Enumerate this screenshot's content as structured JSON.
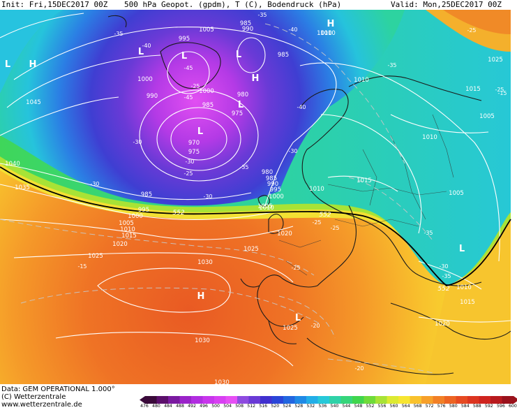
{
  "header": {
    "init": "Init: Fri,15DEC2017 00Z",
    "title": "500 hPa Geopot. (gpdm), T (C), Bodendruck (hPa)",
    "valid": "Valid: Mon,25DEC2017 00Z"
  },
  "footer": {
    "data_source": "Data: GEM OPERATIONAL 1.000°",
    "copyright": "(C) Wetterzentrale",
    "website": "www.wetterzentrale.de"
  },
  "colorbar": {
    "ticks": [
      "476",
      "480",
      "484",
      "488",
      "492",
      "496",
      "500",
      "504",
      "508",
      "512",
      "516",
      "520",
      "524",
      "528",
      "532",
      "536",
      "540",
      "544",
      "548",
      "552",
      "556",
      "560",
      "564",
      "568",
      "572",
      "576",
      "580",
      "584",
      "588",
      "592",
      "596",
      "600"
    ],
    "colors": [
      "#3a0a3a",
      "#5b0f6b",
      "#7a1aa0",
      "#9a23c9",
      "#b12de0",
      "#c836ec",
      "#d840f2",
      "#e64ff4",
      "#8e4be0",
      "#6a3ad6",
      "#4030cf",
      "#2a45d8",
      "#2266e0",
      "#1f8ae6",
      "#23aee8",
      "#27c9d9",
      "#2fd2a8",
      "#36d57a",
      "#40d64d",
      "#6fdb3a",
      "#a8e336",
      "#dcea32",
      "#f7e531",
      "#f9c22d",
      "#f7a02a",
      "#f28026",
      "#ed6423",
      "#e64a22",
      "#dc3520",
      "#cf241f",
      "#b81a1e",
      "#9a121c"
    ]
  },
  "map": {
    "pressure_labels": [
      "1005",
      "985",
      "990",
      "995",
      "1010",
      "985",
      "1000",
      "990",
      "1000",
      "985",
      "980",
      "975",
      "970",
      "975",
      "985",
      "980",
      "985",
      "990",
      "995",
      "1000",
      "1005",
      "995",
      "1000",
      "1005",
      "1010",
      "1015",
      "1020",
      "1025",
      "1030",
      "1035",
      "1040",
      "1045",
      "1010",
      "1010",
      "1015",
      "1020",
      "1025",
      "1010",
      "1005",
      "1010",
      "1015",
      "1020",
      "1025",
      "1030",
      "1010",
      "1015",
      "1005",
      "1010",
      "1025",
      "1030"
    ],
    "temp_labels": [
      "-35",
      "-40",
      "-35",
      "-40",
      "-45",
      "-40",
      "-45",
      "-35",
      "-35",
      "-30",
      "-30",
      "-30",
      "-25",
      "-25",
      "-25",
      "-30",
      "-25",
      "-20",
      "-15",
      "-20",
      "-25",
      "-25",
      "-30",
      "-35",
      "-35",
      "-30",
      "-25",
      "-15"
    ],
    "highs_lows": [
      "L",
      "H",
      "L",
      "L",
      "L",
      "L",
      "L",
      "H",
      "H",
      "H",
      "L",
      "L"
    ],
    "geopotential_labels": [
      "552",
      "552",
      "552"
    ]
  }
}
